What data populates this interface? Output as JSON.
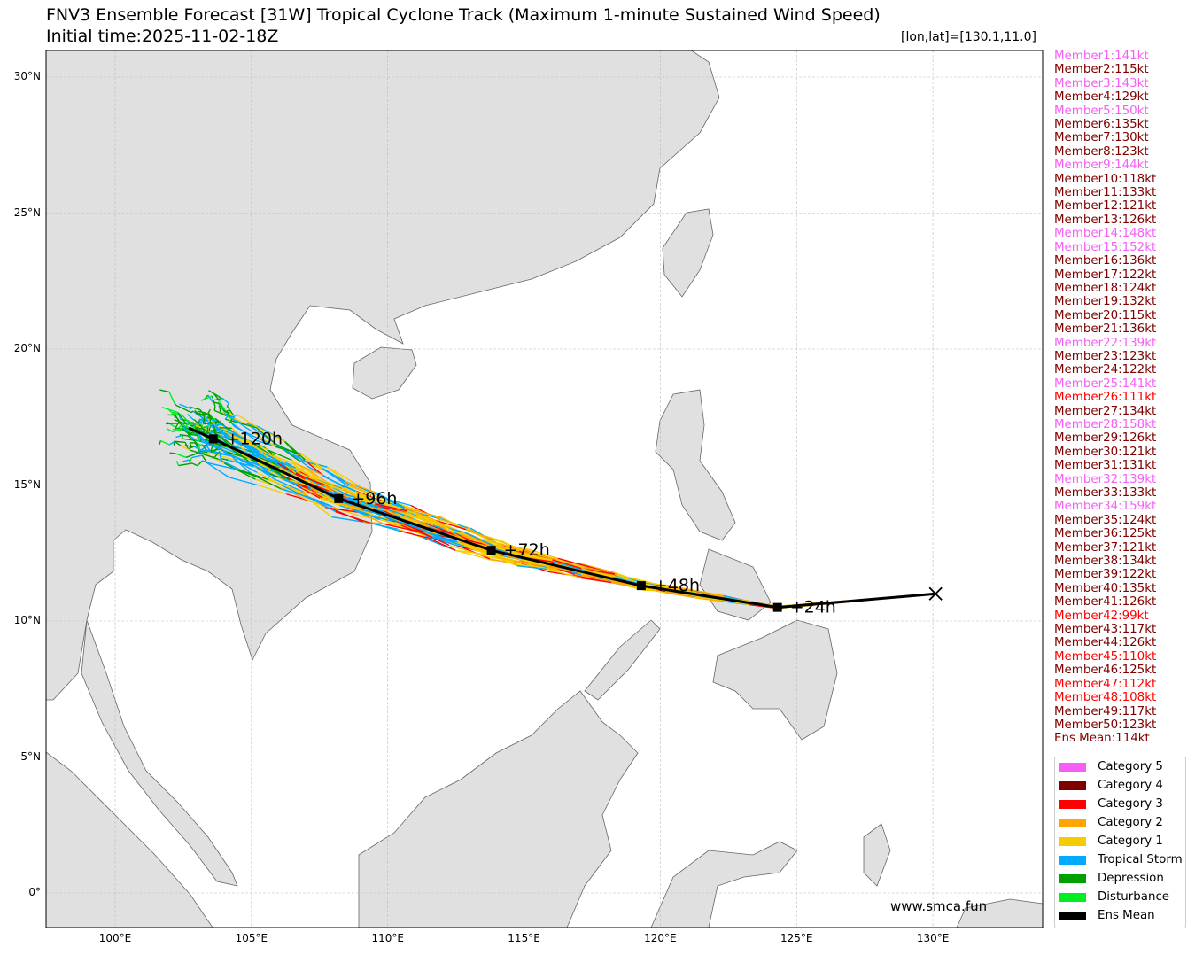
{
  "title": "FNV3 Ensemble Forecast [31W] Tropical Cyclone Track (Maximum 1-minute Sustained Wind Speed)",
  "subtitle": "Initial time:2025-11-02-18Z",
  "position_label": "[lon,lat]=[130.1,11.0]",
  "credit": "www.smca.fun",
  "colors": {
    "cat5": "#f55ff5",
    "cat4": "#7f0000",
    "cat3": "#ff0000",
    "cat2": "#ffa500",
    "cat1": "#f5cc00",
    "ts": "#00aaff",
    "td": "#00a000",
    "dist": "#00ee22",
    "mean": "#000000",
    "land": "#e0e0e0",
    "coast": "#666666"
  },
  "members": [
    {
      "label": "Member1:141kt",
      "cat": "cat5"
    },
    {
      "label": "Member2:115kt",
      "cat": "cat4"
    },
    {
      "label": "Member3:143kt",
      "cat": "cat5"
    },
    {
      "label": "Member4:129kt",
      "cat": "cat4"
    },
    {
      "label": "Member5:150kt",
      "cat": "cat5"
    },
    {
      "label": "Member6:135kt",
      "cat": "cat4"
    },
    {
      "label": "Member7:130kt",
      "cat": "cat4"
    },
    {
      "label": "Member8:123kt",
      "cat": "cat4"
    },
    {
      "label": "Member9:144kt",
      "cat": "cat5"
    },
    {
      "label": "Member10:118kt",
      "cat": "cat4"
    },
    {
      "label": "Member11:133kt",
      "cat": "cat4"
    },
    {
      "label": "Member12:121kt",
      "cat": "cat4"
    },
    {
      "label": "Member13:126kt",
      "cat": "cat4"
    },
    {
      "label": "Member14:148kt",
      "cat": "cat5"
    },
    {
      "label": "Member15:152kt",
      "cat": "cat5"
    },
    {
      "label": "Member16:136kt",
      "cat": "cat4"
    },
    {
      "label": "Member17:122kt",
      "cat": "cat4"
    },
    {
      "label": "Member18:124kt",
      "cat": "cat4"
    },
    {
      "label": "Member19:132kt",
      "cat": "cat4"
    },
    {
      "label": "Member20:115kt",
      "cat": "cat4"
    },
    {
      "label": "Member21:136kt",
      "cat": "cat4"
    },
    {
      "label": "Member22:139kt",
      "cat": "cat5"
    },
    {
      "label": "Member23:123kt",
      "cat": "cat4"
    },
    {
      "label": "Member24:122kt",
      "cat": "cat4"
    },
    {
      "label": "Member25:141kt",
      "cat": "cat5"
    },
    {
      "label": "Member26:111kt",
      "cat": "cat3"
    },
    {
      "label": "Member27:134kt",
      "cat": "cat4"
    },
    {
      "label": "Member28:158kt",
      "cat": "cat5"
    },
    {
      "label": "Member29:126kt",
      "cat": "cat4"
    },
    {
      "label": "Member30:121kt",
      "cat": "cat4"
    },
    {
      "label": "Member31:131kt",
      "cat": "cat4"
    },
    {
      "label": "Member32:139kt",
      "cat": "cat5"
    },
    {
      "label": "Member33:133kt",
      "cat": "cat4"
    },
    {
      "label": "Member34:159kt",
      "cat": "cat5"
    },
    {
      "label": "Member35:124kt",
      "cat": "cat4"
    },
    {
      "label": "Member36:125kt",
      "cat": "cat4"
    },
    {
      "label": "Member37:121kt",
      "cat": "cat4"
    },
    {
      "label": "Member38:134kt",
      "cat": "cat4"
    },
    {
      "label": "Member39:122kt",
      "cat": "cat4"
    },
    {
      "label": "Member40:135kt",
      "cat": "cat4"
    },
    {
      "label": "Member41:126kt",
      "cat": "cat4"
    },
    {
      "label": "Member42:99kt",
      "cat": "cat3"
    },
    {
      "label": "Member43:117kt",
      "cat": "cat4"
    },
    {
      "label": "Member44:126kt",
      "cat": "cat4"
    },
    {
      "label": "Member45:110kt",
      "cat": "cat3"
    },
    {
      "label": "Member46:125kt",
      "cat": "cat4"
    },
    {
      "label": "Member47:112kt",
      "cat": "cat3"
    },
    {
      "label": "Member48:108kt",
      "cat": "cat3"
    },
    {
      "label": "Member49:117kt",
      "cat": "cat4"
    },
    {
      "label": "Member50:123kt",
      "cat": "cat4"
    },
    {
      "label": "Ens Mean:114kt",
      "cat": "cat4"
    }
  ],
  "legend": [
    {
      "label": "Category 5",
      "key": "cat5"
    },
    {
      "label": "Category 4",
      "key": "cat4"
    },
    {
      "label": "Category 3",
      "key": "cat3"
    },
    {
      "label": "Category 2",
      "key": "cat2"
    },
    {
      "label": "Category 1",
      "key": "cat1"
    },
    {
      "label": "Tropical Storm",
      "key": "ts"
    },
    {
      "label": "Depression",
      "key": "td"
    },
    {
      "label": "Disturbance",
      "key": "dist"
    },
    {
      "label": "Ens Mean",
      "key": "mean"
    }
  ],
  "chart_data": {
    "type": "line",
    "xlim": [
      97.5,
      134.0
    ],
    "ylim": [
      -1.3,
      31.0
    ],
    "x_ticks": [
      "100°E",
      "105°E",
      "110°E",
      "115°E",
      "120°E",
      "125°E",
      "130°E"
    ],
    "x_tick_values": [
      100,
      105,
      110,
      115,
      120,
      125,
      130
    ],
    "y_ticks": [
      "0°",
      "5°N",
      "10°N",
      "15°N",
      "20°N",
      "25°N",
      "30°N"
    ],
    "y_tick_values": [
      0,
      5,
      10,
      15,
      20,
      25,
      30
    ],
    "grid": true,
    "legend_position": "right",
    "initial_position": {
      "lon": 130.1,
      "lat": 11.0
    },
    "ens_mean_track": [
      {
        "lon": 130.1,
        "lat": 11.0,
        "label": ""
      },
      {
        "lon": 124.3,
        "lat": 10.5,
        "label": "+24h"
      },
      {
        "lon": 119.3,
        "lat": 11.3,
        "label": "+48h"
      },
      {
        "lon": 113.8,
        "lat": 12.6,
        "label": "+72h"
      },
      {
        "lon": 108.2,
        "lat": 14.5,
        "label": "+96h"
      },
      {
        "lon": 103.6,
        "lat": 16.7,
        "label": "+120h"
      },
      {
        "lon": 102.7,
        "lat": 17.1,
        "label": ""
      }
    ]
  }
}
